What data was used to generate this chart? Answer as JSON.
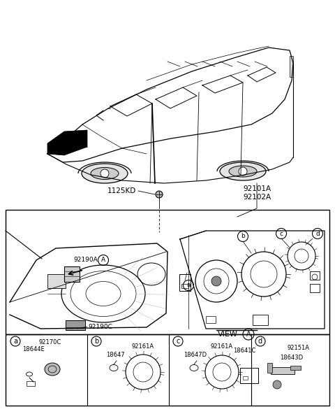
{
  "bg_color": "#ffffff",
  "label_1125KD": "1125KD",
  "label_92101A": "92101A",
  "label_92102A": "92102A",
  "label_92190A": "92190A",
  "label_92190C": "92190C",
  "label_view": "VIEW",
  "label_A": "A",
  "sub_a_labels": [
    "92170C",
    "18644E"
  ],
  "sub_b_labels": [
    "92161A",
    "18647"
  ],
  "sub_c_labels": [
    "18647D",
    "92161A",
    "18641C"
  ],
  "sub_d_labels": [
    "92151A",
    "18643D"
  ]
}
